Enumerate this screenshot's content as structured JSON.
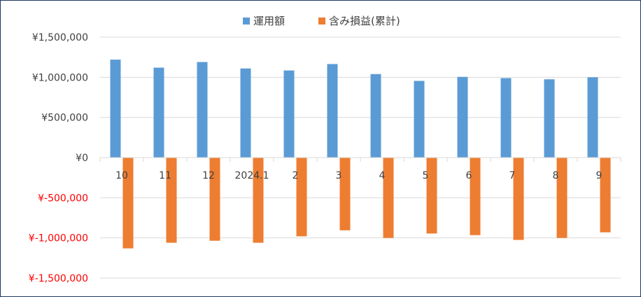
{
  "chart_data": {
    "type": "bar",
    "categories": [
      "10",
      "11",
      "12",
      "2024.1",
      "2",
      "3",
      "4",
      "5",
      "6",
      "7",
      "8",
      "9"
    ],
    "series": [
      {
        "name": "運用額",
        "color": "#5b9bd5",
        "values": [
          1220000,
          1120000,
          1190000,
          1110000,
          1085000,
          1165000,
          1040000,
          955000,
          1005000,
          990000,
          975000,
          1000000
        ]
      },
      {
        "name": "含み損益(累計)",
        "color": "#ed7d31",
        "values": [
          -1130000,
          -1060000,
          -1035000,
          -1060000,
          -980000,
          -905000,
          -1000000,
          -945000,
          -965000,
          -1025000,
          -1000000,
          -930000
        ]
      }
    ],
    "ylim": [
      -1500000,
      1500000
    ],
    "yticks": [
      {
        "value": 1500000,
        "label": "¥1,500,000",
        "color": "#404040"
      },
      {
        "value": 1000000,
        "label": "¥1,000,000",
        "color": "#404040"
      },
      {
        "value": 500000,
        "label": "¥500,000",
        "color": "#404040"
      },
      {
        "value": 0,
        "label": "¥0",
        "color": "#404040"
      },
      {
        "value": -500000,
        "label": "¥-500,000",
        "color": "#ff0000"
      },
      {
        "value": -1000000,
        "label": "¥-1,000,000",
        "color": "#ff0000"
      },
      {
        "value": -1500000,
        "label": "¥-1,500,000",
        "color": "#ff0000"
      }
    ],
    "grid": true,
    "legend_position": "top-center"
  }
}
